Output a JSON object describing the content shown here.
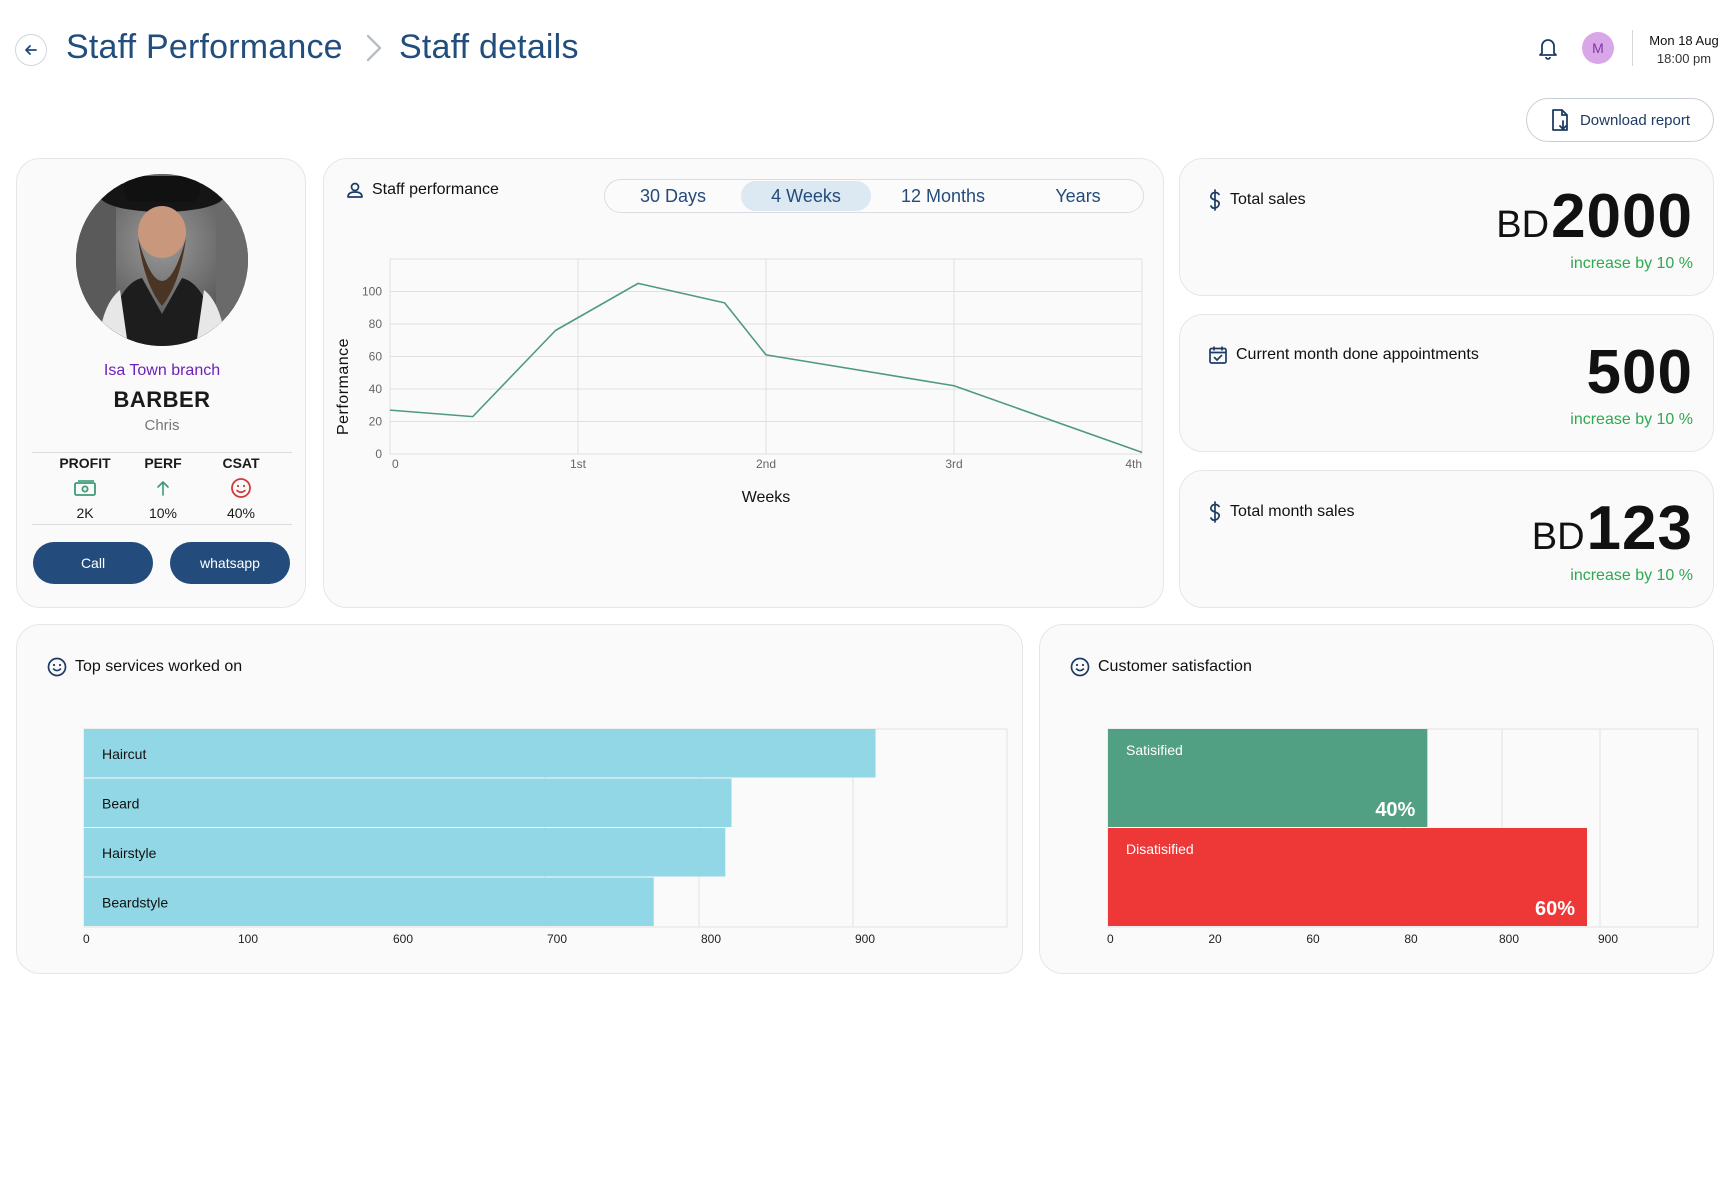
{
  "header": {
    "breadcrumb_root": "Staff Performance",
    "breadcrumb_current": "Staff details",
    "avatar_initial": "M",
    "date": "Mon 18 Aug",
    "time": "18:00 pm"
  },
  "actions": {
    "download_label": "Download report"
  },
  "profile": {
    "branch": "Isa Town branch",
    "role": "BARBER",
    "name": "Chris",
    "stats": [
      {
        "label": "PROFIT",
        "value": "2K",
        "icon": "money-icon"
      },
      {
        "label": "PERF",
        "value": "10%",
        "icon": "arrow-up-icon"
      },
      {
        "label": "CSAT",
        "value": "40%",
        "icon": "smiley-icon"
      }
    ],
    "call_label": "Call",
    "whatsapp_label": "whatsapp"
  },
  "performance": {
    "title": "Staff performance",
    "periods": [
      "30 Days",
      "4 Weeks",
      "12 Months",
      "Years"
    ],
    "active_period": "4 Weeks"
  },
  "metrics": [
    {
      "title": "Total sales",
      "currency": "BD",
      "value": "2000",
      "change": "increase by 10 %",
      "icon": "dollar-icon"
    },
    {
      "title": "Current month done appointments",
      "currency": "",
      "value": "500",
      "change": "increase by 10 %",
      "icon": "calendar-check-icon"
    },
    {
      "title": "Total month sales",
      "currency": "BD",
      "value": "123",
      "change": "increase by 10 %",
      "icon": "dollar-icon"
    }
  ],
  "services": {
    "title": "Top services worked on"
  },
  "satisfaction": {
    "title": "Customer satisfaction"
  },
  "colors": {
    "primary": "#234b7c",
    "line": "#4f9a7e",
    "service_bar": "#92d7e6",
    "satisfied": "#52a083",
    "dissatisfied": "#ee3737",
    "positive": "#2fa84f"
  },
  "chart_data": [
    {
      "type": "line",
      "xlabel": "Weeks",
      "ylabel": "Performance",
      "x_tick_labels": [
        "0",
        "1st",
        "2nd",
        "3rd",
        "4th"
      ],
      "y_ticks": [
        0,
        20,
        40,
        60,
        80,
        100
      ],
      "ylim": [
        0,
        120
      ],
      "xlim": [
        0,
        4
      ],
      "grid": true,
      "x": [
        0,
        0.44,
        0.88,
        1.32,
        1.78,
        2.0,
        3.0,
        4.0
      ],
      "values": [
        27,
        23,
        76,
        105,
        93,
        61,
        42,
        1
      ]
    },
    {
      "type": "bar",
      "orientation": "horizontal",
      "categories": [
        "Haircut",
        "Beard",
        "Hairstyle",
        "Beardstyle"
      ],
      "values": [
        885,
        724,
        717,
        637
      ],
      "x_tick_labels": [
        "0",
        "100",
        "600",
        "700",
        "800",
        "900"
      ],
      "grid": true
    },
    {
      "type": "bar",
      "orientation": "horizontal",
      "categories": [
        "Satisified",
        "Disatisified"
      ],
      "values": [
        40,
        60
      ],
      "value_labels": [
        "40%",
        "60%"
      ],
      "x_tick_labels": [
        "0",
        "20",
        "60",
        "80",
        "800",
        "900"
      ],
      "grid": true
    }
  ]
}
